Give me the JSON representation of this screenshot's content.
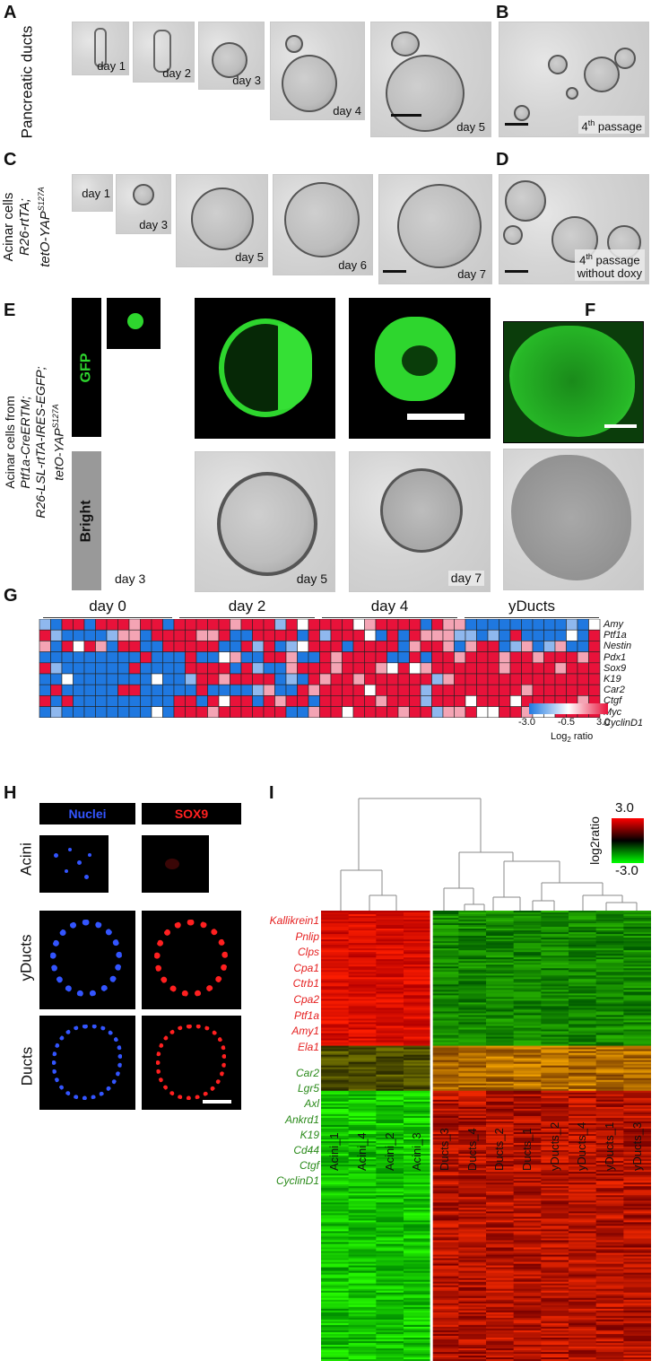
{
  "panels": {
    "A": {
      "letter": "A",
      "row_label": "Pancreatic ducts",
      "days": [
        "day 1",
        "day 2",
        "day 3",
        "day 4",
        "day 5"
      ]
    },
    "B": {
      "letter": "B",
      "caption_num": "4",
      "caption_sup": "th",
      "caption_rest": " passage"
    },
    "C": {
      "letter": "C",
      "row_label_1": "Acinar cells",
      "row_label_2": "R26-rtTA;",
      "row_label_3": "tetO-YAP",
      "row_label_3_sup": "S127A",
      "days": [
        "day 1",
        "day 3",
        "day 5",
        "day 6",
        "day 7"
      ]
    },
    "D": {
      "letter": "D",
      "caption_num": "4",
      "caption_sup": "th",
      "caption_rest": " passage",
      "caption_line2": "without doxy"
    },
    "E": {
      "letter": "E",
      "row_label_1": "Acinar cells from",
      "row_label_2": "Ptf1a-CreERTM;",
      "row_label_3": "R26-LSL-rtTA-IRES-EGFP;",
      "row_label_4": "tetO-YAP",
      "row_label_4_sup": "S127A",
      "gfp_label": "GFP",
      "bright_label": "Bright",
      "days": [
        "day 3",
        "day 5",
        "day 7"
      ]
    },
    "F": {
      "letter": "F"
    },
    "G": {
      "letter": "G",
      "groups": [
        "day 0",
        "day 2",
        "day 4",
        "yDucts"
      ],
      "genes": [
        "Amy",
        "Ptf1a",
        "Nestin",
        "Pdx1",
        "Sox9",
        "K19",
        "Car2",
        "Ctgf",
        "Myc",
        "CyclinD1"
      ],
      "colorbar_ticks": [
        "-3.0",
        "-0.5",
        "3.0"
      ],
      "colorbar_label": "Log",
      "colorbar_label_sub": "2",
      "colorbar_label_rest": " ratio"
    },
    "H": {
      "letter": "H",
      "col_headers": [
        "Nuclei",
        "SOX9"
      ],
      "rows": [
        "Acini",
        "yDucts",
        "Ducts"
      ]
    },
    "I": {
      "letter": "I",
      "scale_max": "3.0",
      "scale_min": "-3.0",
      "scale_label": "log2ratio",
      "red_genes": [
        "Kallikrein1",
        "Pnlip",
        "Clps",
        "Cpa1",
        "Ctrb1",
        "Cpa2",
        "Ptf1a",
        "Amy1",
        "Ela1"
      ],
      "green_genes": [
        "Car2",
        "Lgr5",
        "Axl",
        "Ankrd1",
        "K19",
        "Cd44",
        "Ctgf",
        "CyclinD1"
      ],
      "columns": [
        "Acini_1",
        "Acini_4",
        "Acini_2",
        "Acini_3",
        "Ducts_3",
        "Ducts_4",
        "Ducts_2",
        "Ducts_1",
        "yDucts_2",
        "yDucts_4",
        "yDucts_1",
        "yDucts_3"
      ]
    }
  },
  "colors": {
    "heat_low": "#1f78e0",
    "heat_mid": "#ffffff",
    "heat_high": "#e8123a",
    "gfp": "#2ed62e",
    "nuclei_blue": "#3355ff",
    "sox9_red": "#ff2020"
  }
}
